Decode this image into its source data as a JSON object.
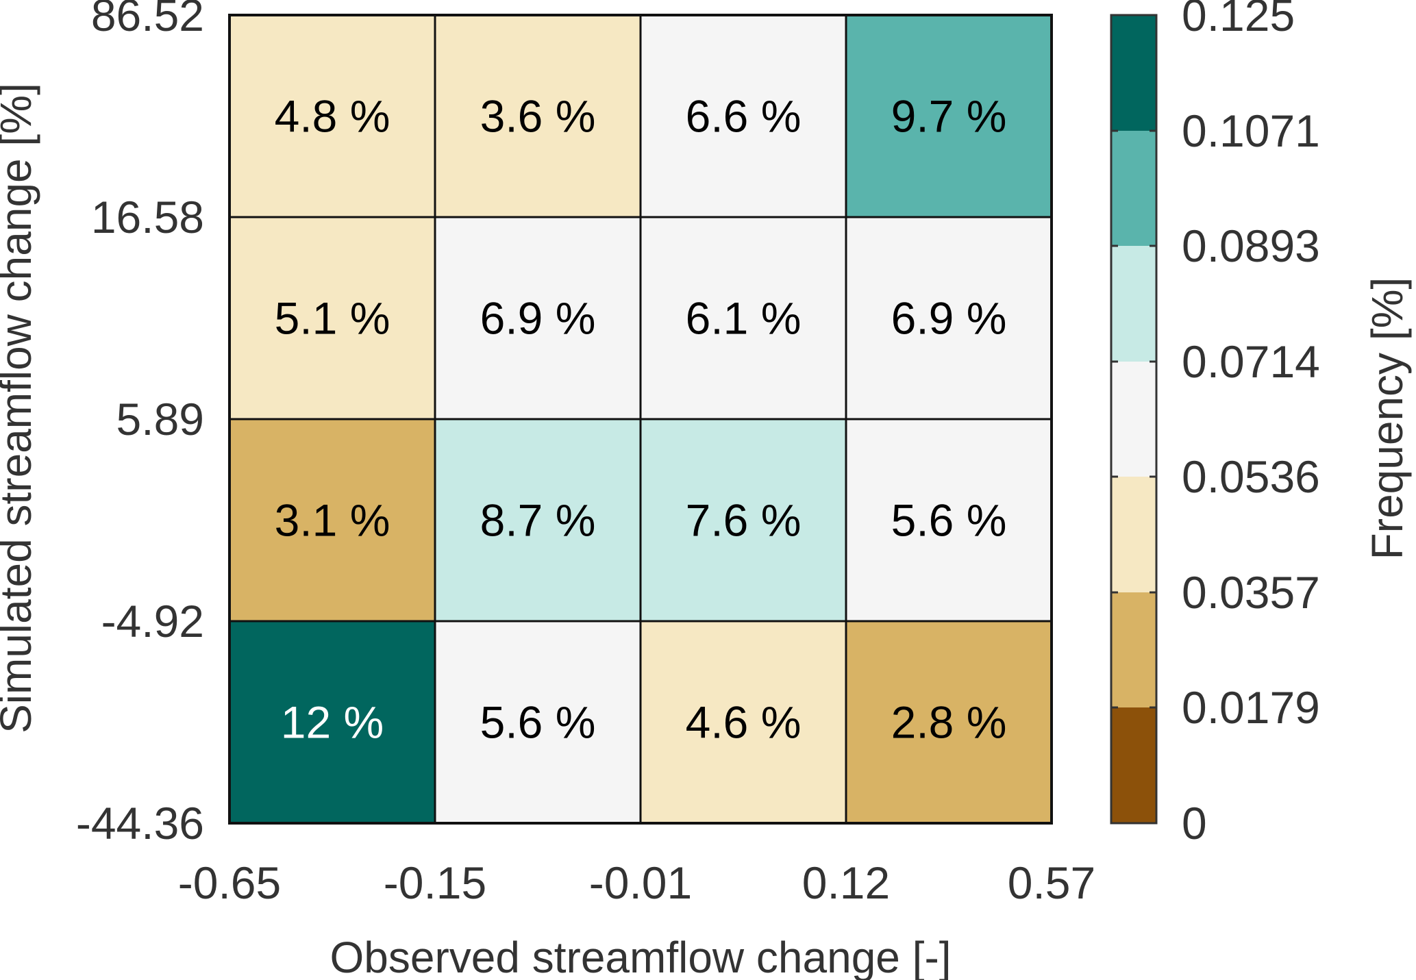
{
  "chart_data": {
    "type": "heatmap",
    "title": "",
    "xlabel": "Observed streamflow change [-]",
    "ylabel": "Simulated streamflow change [%]",
    "x_bin_edges": [
      "-0.65",
      "-0.15",
      "-0.01",
      "0.12",
      "0.57"
    ],
    "y_bin_edges": [
      "-44.36",
      "-4.92",
      "5.89",
      "16.58",
      "86.52"
    ],
    "cells": [
      [
        {
          "value": 0.12,
          "label": "12 %"
        },
        {
          "value": 0.056,
          "label": "5.6 %"
        },
        {
          "value": 0.046,
          "label": "4.6 %"
        },
        {
          "value": 0.028,
          "label": "2.8 %"
        }
      ],
      [
        {
          "value": 0.031,
          "label": "3.1 %"
        },
        {
          "value": 0.087,
          "label": "8.7 %"
        },
        {
          "value": 0.076,
          "label": "7.6 %"
        },
        {
          "value": 0.056,
          "label": "5.6 %"
        }
      ],
      [
        {
          "value": 0.051,
          "label": "5.1 %"
        },
        {
          "value": 0.069,
          "label": "6.9 %"
        },
        {
          "value": 0.061,
          "label": "6.1 %"
        },
        {
          "value": 0.069,
          "label": "6.9 %"
        }
      ],
      [
        {
          "value": 0.048,
          "label": "4.8 %"
        },
        {
          "value": 0.036,
          "label": "3.6 %"
        },
        {
          "value": 0.066,
          "label": "6.6 %"
        },
        {
          "value": 0.097,
          "label": "9.7 %"
        }
      ]
    ],
    "colorbar": {
      "label": "Frequency [%]",
      "ticks": [
        "0",
        "0.0179",
        "0.0357",
        "0.0536",
        "0.0714",
        "0.0893",
        "0.1071",
        "0.125"
      ],
      "tick_values": [
        0,
        0.0179,
        0.0357,
        0.0536,
        0.0714,
        0.0893,
        0.1071,
        0.125
      ],
      "colors": [
        "#8c510a",
        "#d8b365",
        "#f6e8c3",
        "#f5f5f5",
        "#c7eae5",
        "#5ab4ac",
        "#01665e"
      ]
    },
    "light_text_color": "#ffffff",
    "dark_text_color": "#000000"
  }
}
